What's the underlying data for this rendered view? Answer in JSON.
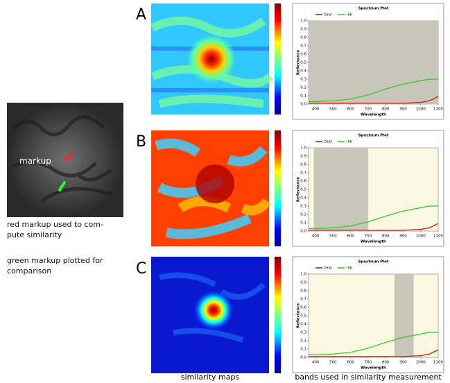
{
  "figure": {
    "markup_label": "markup",
    "red_note": [
      "red markup used to com-",
      "pute similarity"
    ],
    "green_note": [
      "green markup plotted for",
      "comparison"
    ],
    "panel_labels": [
      "A",
      "B",
      "C"
    ],
    "maps_caption": "similarity maps",
    "plots_caption": "bands used in similarity measurement"
  },
  "chart_data": [
    {
      "type": "line",
      "title": "Spectrum Plot",
      "x_label": "Wavelength",
      "y_label": "Reflectance",
      "x": [
        360,
        400,
        500,
        600,
        700,
        800,
        900,
        1000,
        1050,
        1100
      ],
      "series": [
        {
          "name": "tear",
          "color": "#e00000",
          "values": [
            0.01,
            0.01,
            0.01,
            0.01,
            0.01,
            0.01,
            0.01,
            0.02,
            0.04,
            0.09
          ]
        },
        {
          "name": "ink",
          "color": "#22cc22",
          "values": [
            0.03,
            0.03,
            0.04,
            0.06,
            0.11,
            0.18,
            0.24,
            0.28,
            0.3,
            0.3
          ]
        }
      ],
      "band": [
        360,
        1100
      ],
      "xlim": [
        360,
        1100
      ],
      "xticks": [
        400,
        500,
        600,
        700,
        800,
        900,
        1000,
        1100
      ],
      "ylim": [
        0,
        1
      ],
      "yticks": [
        {
          "value": 0,
          "label": "0.0"
        },
        0.1,
        0.2,
        0.3,
        0.4,
        0.5,
        0.6,
        0.7,
        0.8,
        0.9,
        {
          "value": 1,
          "label": "1.0"
        }
      ]
    },
    {
      "type": "line",
      "title": "Spectrum Plot",
      "x_label": "Wavelength",
      "y_label": "Reflectance",
      "x": [
        360,
        400,
        500,
        600,
        700,
        800,
        900,
        1000,
        1050,
        1100
      ],
      "series": [
        {
          "name": "tear",
          "color": "#e00000",
          "values": [
            0.01,
            0.01,
            0.01,
            0.01,
            0.01,
            0.01,
            0.01,
            0.02,
            0.04,
            0.09
          ]
        },
        {
          "name": "ink",
          "color": "#22cc22",
          "values": [
            0.03,
            0.03,
            0.04,
            0.06,
            0.11,
            0.18,
            0.24,
            0.28,
            0.3,
            0.3
          ]
        }
      ],
      "band": [
        390,
        700
      ],
      "xlim": [
        360,
        1100
      ],
      "xticks": [
        400,
        500,
        600,
        700,
        800,
        900,
        1000,
        1100
      ],
      "ylim": [
        0,
        1
      ],
      "yticks": [
        {
          "value": 0,
          "label": "0.0"
        },
        0.1,
        0.2,
        0.3,
        0.4,
        0.5,
        0.6,
        0.7,
        0.8,
        0.9,
        {
          "value": 1,
          "label": "1.0"
        }
      ]
    },
    {
      "type": "line",
      "title": "Spectrum Plot",
      "x_label": "Wavelength",
      "y_label": "Reflectance",
      "x": [
        360,
        400,
        500,
        600,
        700,
        800,
        900,
        1000,
        1050,
        1100
      ],
      "series": [
        {
          "name": "tear",
          "color": "#e00000",
          "values": [
            0.01,
            0.01,
            0.01,
            0.01,
            0.01,
            0.01,
            0.01,
            0.02,
            0.04,
            0.09
          ]
        },
        {
          "name": "ink",
          "color": "#22cc22",
          "values": [
            0.03,
            0.03,
            0.04,
            0.06,
            0.11,
            0.18,
            0.24,
            0.28,
            0.3,
            0.3
          ]
        }
      ],
      "band": [
        850,
        960
      ],
      "xlim": [
        360,
        1100
      ],
      "xticks": [
        400,
        500,
        600,
        700,
        800,
        900,
        1000,
        1100
      ],
      "ylim": [
        0,
        1
      ],
      "yticks": [
        {
          "value": 0,
          "label": "0.0"
        },
        0.1,
        0.2,
        0.3,
        0.4,
        0.5,
        0.6,
        0.7,
        0.8,
        0.9,
        {
          "value": 1,
          "label": "1.0"
        }
      ]
    }
  ]
}
